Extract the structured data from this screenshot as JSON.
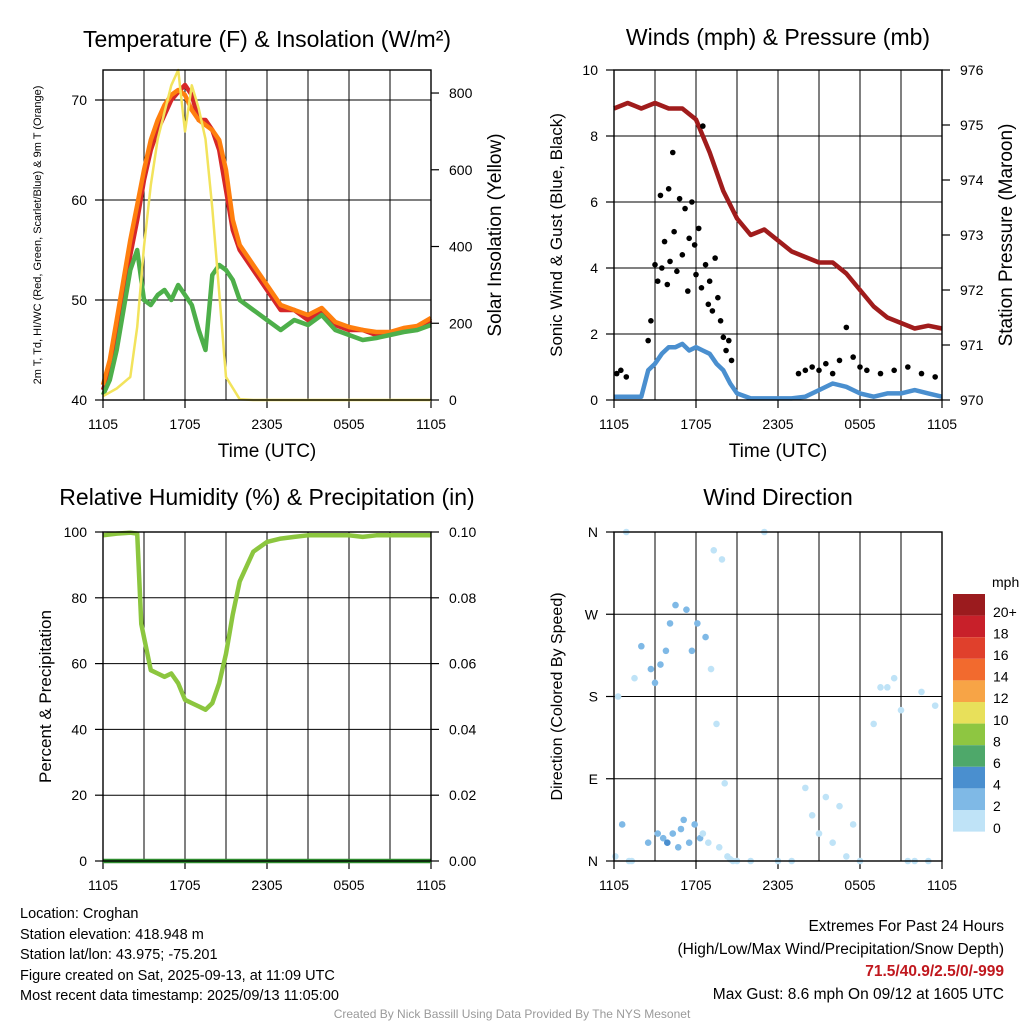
{
  "chart_data": [
    {
      "type": "line",
      "title": "Temperature (F) & Insolation (W/m²)",
      "xlabel": "Time (UTC)",
      "ylabel": "2m T, Td, HI/WC (Red, Green, Scarlet/Blue) & 9m T (Orange)",
      "y2label": "Solar Insolation (Yellow)",
      "x_ticks": [
        "1105",
        "1705",
        "2305",
        "0505",
        "1105"
      ],
      "ylim": [
        40,
        73
      ],
      "y_ticks": [
        40,
        50,
        60,
        70
      ],
      "y2lim": [
        0,
        860
      ],
      "y2_ticks": [
        0,
        200,
        400,
        600,
        800
      ],
      "xlim_hours": [
        0,
        24
      ],
      "grid": true,
      "series": [
        {
          "name": "2m T",
          "color": "#d62728",
          "axis": "left",
          "x": [
            0,
            0.5,
            1,
            1.5,
            2,
            2.5,
            3,
            3.5,
            4,
            4.5,
            5,
            5.5,
            6,
            6.5,
            7,
            7.5,
            8,
            8.5,
            9,
            9.5,
            10,
            11,
            12,
            13,
            14,
            15,
            16,
            17,
            18,
            19,
            20,
            21,
            22,
            23,
            24
          ],
          "y": [
            41,
            43,
            46,
            50,
            54.5,
            58,
            62,
            65,
            67,
            68.5,
            70,
            70.8,
            71.5,
            70.5,
            68,
            68,
            67,
            65,
            61,
            57,
            55,
            53,
            51,
            49,
            49,
            48,
            49,
            47.5,
            47,
            47,
            46.5,
            46.5,
            47,
            47.2,
            48
          ]
        },
        {
          "name": "9m T",
          "color": "#ff7f0e",
          "axis": "left",
          "x": [
            0,
            0.5,
            1,
            1.5,
            2,
            2.5,
            3,
            3.5,
            4,
            4.5,
            5,
            5.5,
            6,
            6.5,
            7,
            7.5,
            8,
            8.5,
            9,
            9.5,
            10,
            11,
            12,
            13,
            14,
            15,
            16,
            17,
            18,
            19,
            20,
            21,
            22,
            23,
            24
          ],
          "y": [
            41.5,
            44,
            48,
            52,
            56,
            59.5,
            63,
            66,
            68,
            69.5,
            70.5,
            71,
            70.5,
            69,
            68,
            67.5,
            67,
            66,
            63,
            58,
            55.5,
            53.5,
            51.5,
            49.5,
            49,
            48.5,
            49.2,
            47.8,
            47.3,
            47,
            46.8,
            46.8,
            47.2,
            47.4,
            48.2
          ]
        },
        {
          "name": "Td",
          "color": "#4daf4a",
          "axis": "left",
          "x": [
            0,
            0.5,
            1,
            1.5,
            2,
            2.5,
            3,
            3.5,
            4,
            4.5,
            5,
            5.5,
            6,
            6.5,
            7,
            7.5,
            8,
            8.5,
            9,
            9.5,
            10,
            11,
            12,
            13,
            14,
            15,
            16,
            17,
            18,
            19,
            20,
            21,
            22,
            23,
            24
          ],
          "y": [
            40.5,
            42,
            45,
            49,
            53,
            55,
            50,
            49.5,
            50.5,
            51,
            50,
            51.5,
            50.5,
            49.5,
            47,
            45,
            52.5,
            53.5,
            53,
            52,
            50,
            49,
            48,
            47,
            48,
            47.5,
            48.5,
            47,
            46.5,
            46,
            46.2,
            46.5,
            46.8,
            47,
            47.5
          ]
        },
        {
          "name": "Solar Insolation",
          "color": "#f2e35c",
          "axis": "right",
          "x": [
            0,
            1,
            2,
            2.5,
            3,
            3.5,
            4,
            4.5,
            5,
            5.5,
            6,
            6.5,
            7,
            7.5,
            8,
            8.5,
            9,
            10,
            11,
            12,
            13,
            14,
            15,
            16,
            17,
            18,
            19,
            20,
            21,
            22,
            23,
            24
          ],
          "y": [
            10,
            30,
            60,
            190,
            400,
            560,
            680,
            750,
            820,
            860,
            700,
            820,
            760,
            680,
            500,
            280,
            60,
            2,
            0,
            0,
            0,
            0,
            0,
            0,
            0,
            0,
            0,
            0,
            0,
            0,
            0,
            0
          ]
        }
      ]
    },
    {
      "type": "line",
      "title": "Winds (mph) & Pressure (mb)",
      "xlabel": "Time (UTC)",
      "ylabel": "Sonic Wind & Gust (Blue, Black)",
      "y2label": "Station Pressure (Maroon)",
      "x_ticks": [
        "1105",
        "1705",
        "2305",
        "0505",
        "1105"
      ],
      "ylim": [
        0,
        10
      ],
      "y_ticks": [
        0,
        2,
        4,
        6,
        8,
        10
      ],
      "y2lim": [
        970,
        976
      ],
      "y2_ticks": [
        970,
        971,
        972,
        973,
        974,
        975,
        976
      ],
      "xlim_hours": [
        0,
        24
      ],
      "grid": true,
      "series": [
        {
          "name": "Station Pressure",
          "color": "#a01c1c",
          "axis": "right",
          "x": [
            0,
            1,
            2,
            3,
            4,
            5,
            6,
            7,
            8,
            9,
            10,
            11,
            12,
            13,
            14,
            15,
            16,
            17,
            18,
            19,
            20,
            21,
            22,
            23,
            24
          ],
          "y": [
            975.3,
            975.4,
            975.3,
            975.4,
            975.3,
            975.3,
            975.1,
            974.5,
            973.8,
            973.3,
            973.0,
            973.1,
            972.9,
            972.7,
            972.6,
            972.5,
            972.5,
            972.3,
            972.0,
            971.7,
            971.5,
            971.4,
            971.3,
            971.35,
            971.3
          ]
        },
        {
          "name": "Sonic Wind",
          "color": "#4a8fcf",
          "axis": "left",
          "x": [
            0,
            1,
            2,
            2.5,
            3,
            3.5,
            4,
            4.5,
            5,
            5.5,
            6,
            6.5,
            7,
            7.5,
            8,
            8.5,
            9,
            10,
            11,
            12,
            13,
            14,
            15,
            16,
            17,
            18,
            19,
            20,
            21,
            22,
            23,
            24
          ],
          "y": [
            0.1,
            0.1,
            0.1,
            0.9,
            1.1,
            1.4,
            1.6,
            1.6,
            1.7,
            1.5,
            1.6,
            1.5,
            1.4,
            1.1,
            0.9,
            0.5,
            0.2,
            0.05,
            0.05,
            0.05,
            0.05,
            0.1,
            0.3,
            0.5,
            0.4,
            0.2,
            0.1,
            0.2,
            0.2,
            0.3,
            0.2,
            0.1
          ]
        }
      ],
      "gust_points": {
        "name": "Gust",
        "color": "#000000",
        "x": [
          0.2,
          0.5,
          0.9,
          2.5,
          2.7,
          3.0,
          3.2,
          3.4,
          3.5,
          3.7,
          3.9,
          4.0,
          4.1,
          4.3,
          4.4,
          4.6,
          4.8,
          5.0,
          5.2,
          5.4,
          5.5,
          5.7,
          5.9,
          6.0,
          6.2,
          6.4,
          6.5,
          6.7,
          6.9,
          7.0,
          7.2,
          7.4,
          7.6,
          7.8,
          8.0,
          8.2,
          8.4,
          8.6,
          13.5,
          14.0,
          14.5,
          15.0,
          15.5,
          16.0,
          16.5,
          17.0,
          17.5,
          18.0,
          18.5,
          19.5,
          20.5,
          21.5,
          22.5,
          23.5
        ],
        "y": [
          0.8,
          0.9,
          0.7,
          1.8,
          2.4,
          4.1,
          3.6,
          6.2,
          4.0,
          4.8,
          3.5,
          6.4,
          4.2,
          7.5,
          5.1,
          3.9,
          6.1,
          4.4,
          5.8,
          3.3,
          4.9,
          6.0,
          4.7,
          3.8,
          5.2,
          3.4,
          8.3,
          4.1,
          2.9,
          3.6,
          2.7,
          4.3,
          3.1,
          2.4,
          1.9,
          1.5,
          1.8,
          1.2,
          0.8,
          0.9,
          1.0,
          0.9,
          1.1,
          0.8,
          1.2,
          2.2,
          1.3,
          1.0,
          0.9,
          0.8,
          0.9,
          1.0,
          0.8,
          0.7
        ]
      }
    },
    {
      "type": "line",
      "title": "Relative Humidity (%) & Precipitation (in)",
      "xlabel": "",
      "ylabel": "Percent & Precipitation",
      "x_ticks": [
        "1105",
        "1705",
        "2305",
        "0505",
        "1105"
      ],
      "ylim": [
        0,
        100
      ],
      "y_ticks": [
        0,
        20,
        40,
        60,
        80,
        100
      ],
      "y2lim": [
        0,
        0.1
      ],
      "y2_ticks": [
        "0.00",
        "0.02",
        "0.04",
        "0.06",
        "0.08",
        "0.10"
      ],
      "xlim_hours": [
        0,
        24
      ],
      "grid": true,
      "series": [
        {
          "name": "Relative Humidity",
          "color": "#8cc63f",
          "axis": "left",
          "x": [
            0,
            1,
            2,
            2.5,
            2.8,
            3,
            3.5,
            4,
            4.5,
            5,
            5.5,
            6,
            6.5,
            7,
            7.5,
            8,
            8.5,
            9,
            9.5,
            10,
            11,
            12,
            13,
            14,
            15,
            16,
            17,
            18,
            19,
            20,
            21,
            22,
            23,
            24
          ],
          "y": [
            99,
            99.5,
            99.8,
            99.5,
            72,
            68,
            58,
            57,
            56,
            57,
            54,
            49,
            48,
            47,
            46,
            48,
            54,
            63,
            75,
            85,
            94,
            97,
            98,
            98.5,
            99,
            99,
            99,
            99,
            98.5,
            99,
            99,
            99,
            99,
            99
          ]
        },
        {
          "name": "Precipitation",
          "color": "#2e8b2e",
          "axis": "right",
          "x": [
            0,
            24
          ],
          "y": [
            0,
            0
          ]
        }
      ]
    },
    {
      "type": "scatter",
      "title": "Wind Direction",
      "xlabel": "",
      "ylabel": "Direction (Colored By Speed)",
      "x_ticks": [
        "1105",
        "1705",
        "2305",
        "0505",
        "1105"
      ],
      "y_ticks": [
        "N",
        "E",
        "S",
        "W",
        "N"
      ],
      "ylim_degrees": [
        0,
        360
      ],
      "xlim_hours": [
        0,
        24
      ],
      "grid": true,
      "legend": {
        "title": "mph",
        "position": "right",
        "labels": [
          "20+",
          "18",
          "16",
          "14",
          "12",
          "10",
          "8",
          "6",
          "4",
          "2",
          "0"
        ],
        "colors": [
          "#9b1b1e",
          "#c8202a",
          "#e0402c",
          "#f26a2e",
          "#f7a446",
          "#e8e05a",
          "#8ec641",
          "#4ea86a",
          "#4a8fcf",
          "#7fb9e6",
          "#bfe3f7"
        ]
      },
      "points": {
        "x": [
          0.1,
          0.3,
          0.6,
          0.9,
          1.1,
          1.3,
          1.5,
          2.0,
          2.5,
          2.7,
          3.0,
          3.2,
          3.4,
          3.6,
          3.8,
          3.9,
          4.1,
          4.3,
          4.5,
          4.7,
          4.9,
          5.1,
          5.3,
          5.5,
          5.7,
          5.9,
          6.1,
          6.3,
          6.5,
          6.7,
          6.9,
          7.1,
          7.3,
          7.5,
          7.7,
          7.9,
          8.1,
          8.3,
          8.5,
          8.7,
          9.0,
          10.0,
          11.0,
          12.0,
          13.0,
          14.0,
          14.5,
          15.0,
          15.5,
          16.0,
          16.5,
          17.0,
          17.5,
          18.0,
          19.0,
          19.5,
          20.0,
          20.5,
          21.0,
          21.5,
          22.0,
          22.5,
          23.0,
          23.5
        ],
        "y_degrees": [
          5,
          180,
          40,
          360,
          0,
          0,
          200,
          235,
          20,
          210,
          195,
          30,
          215,
          25,
          230,
          20,
          260,
          30,
          280,
          15,
          35,
          45,
          275,
          20,
          230,
          40,
          260,
          25,
          30,
          245,
          20,
          210,
          340,
          150,
          15,
          330,
          85,
          5,
          2,
          0,
          0,
          0,
          360,
          0,
          0,
          80,
          50,
          30,
          70,
          20,
          60,
          5,
          40,
          0,
          150,
          190,
          190,
          200,
          165,
          0,
          0,
          185,
          0,
          170
        ],
        "speed": [
          0.5,
          0.8,
          1.0,
          0.5,
          0.4,
          0.3,
          0.8,
          1.2,
          1.5,
          2.5,
          1.8,
          2.2,
          1.5,
          2.8,
          2.0,
          3.0,
          1.5,
          2.5,
          1.2,
          2.2,
          1.8,
          1.5,
          2.0,
          1.2,
          1.8,
          1.0,
          1.5,
          1.2,
          0.8,
          1.0,
          0.8,
          0.6,
          0.9,
          0.7,
          0.5,
          0.4,
          0.5,
          0.3,
          0.3,
          0.2,
          0.1,
          0.1,
          0.2,
          0.1,
          0.3,
          0.6,
          0.8,
          0.9,
          0.7,
          0.5,
          0.8,
          0.4,
          0.6,
          0.3,
          0.6,
          0.8,
          0.5,
          0.7,
          0.4,
          0.3,
          0.2,
          0.6,
          0.3,
          0.7
        ]
      }
    }
  ],
  "footer": {
    "location": "Location: Croghan",
    "elevation": "Station elevation: 418.948 m",
    "latlon": "Station lat/lon: 43.975; -75.201",
    "created": "Figure created on Sat, 2025-09-13, at 11:09 UTC",
    "recent": "Most recent data timestamp: 2025/09/13 11:05:00"
  },
  "extremes": {
    "title": "Extremes For Past 24 Hours",
    "subtitle": "(High/Low/Max Wind/Precipitation/Snow Depth)",
    "values": "71.5/40.9/2.5/0/-999",
    "max_gust": "Max Gust: 8.6 mph On 09/12 at 1605 UTC"
  },
  "credit": "Created By Nick Bassill Using Data Provided By The NYS Mesonet"
}
